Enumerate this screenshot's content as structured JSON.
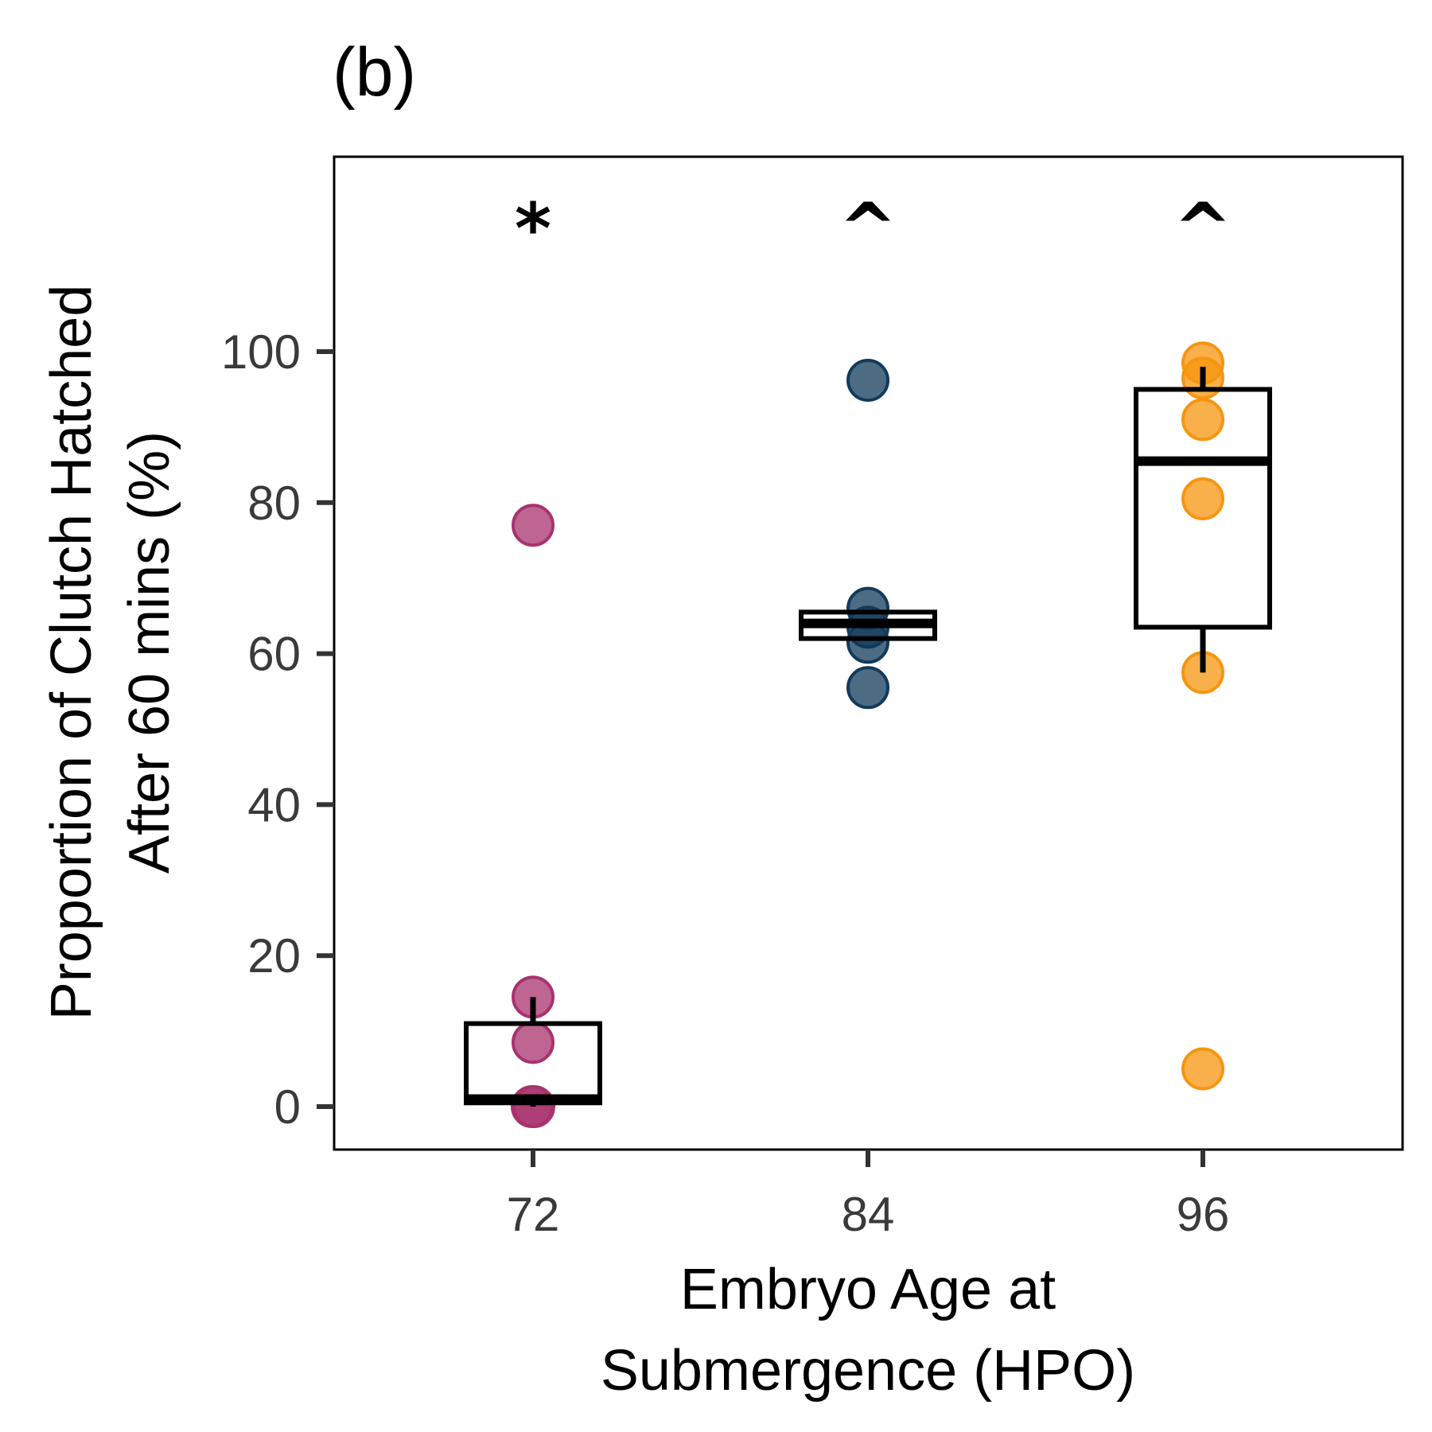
{
  "panel_label": "(b)",
  "chart_data": {
    "type": "box",
    "title": "",
    "xlabel_lines": [
      "Embryo Age at",
      "Submergence (HPO)"
    ],
    "ylabel_lines": [
      "Proportion of Clutch Hatched",
      "After 60 mins (%)"
    ],
    "ylim": [
      -5.5,
      126
    ],
    "y_ticks": [
      0,
      20,
      40,
      60,
      80,
      100
    ],
    "y_tick_labels": [
      "0",
      "20",
      "40",
      "60",
      "80",
      "100"
    ],
    "categories": [
      "72",
      "84",
      "96"
    ],
    "annotations": [
      "*",
      "^",
      "^"
    ],
    "grid": false,
    "legend": "none",
    "colors": {
      "72": "#a8326e",
      "84": "#123a5a",
      "96": "#f7950f"
    },
    "points": [
      [
        77,
        14.5,
        8.5,
        0,
        0
      ],
      [
        96.2,
        66,
        63.5,
        61.5,
        55.5
      ],
      [
        98.5,
        96.5,
        91,
        80.5,
        57.5,
        5
      ]
    ],
    "boxes": [
      {
        "q1": 0.5,
        "median": 1,
        "q3": 11,
        "whisker_low": 0,
        "whisker_high": 14.5
      },
      {
        "q1": 62,
        "median": 64,
        "q3": 65.5,
        "whisker_low": 62,
        "whisker_high": 65.5
      },
      {
        "q1": 63.5,
        "median": 85.5,
        "q3": 95,
        "whisker_low": 57.5,
        "whisker_high": 98
      }
    ]
  }
}
